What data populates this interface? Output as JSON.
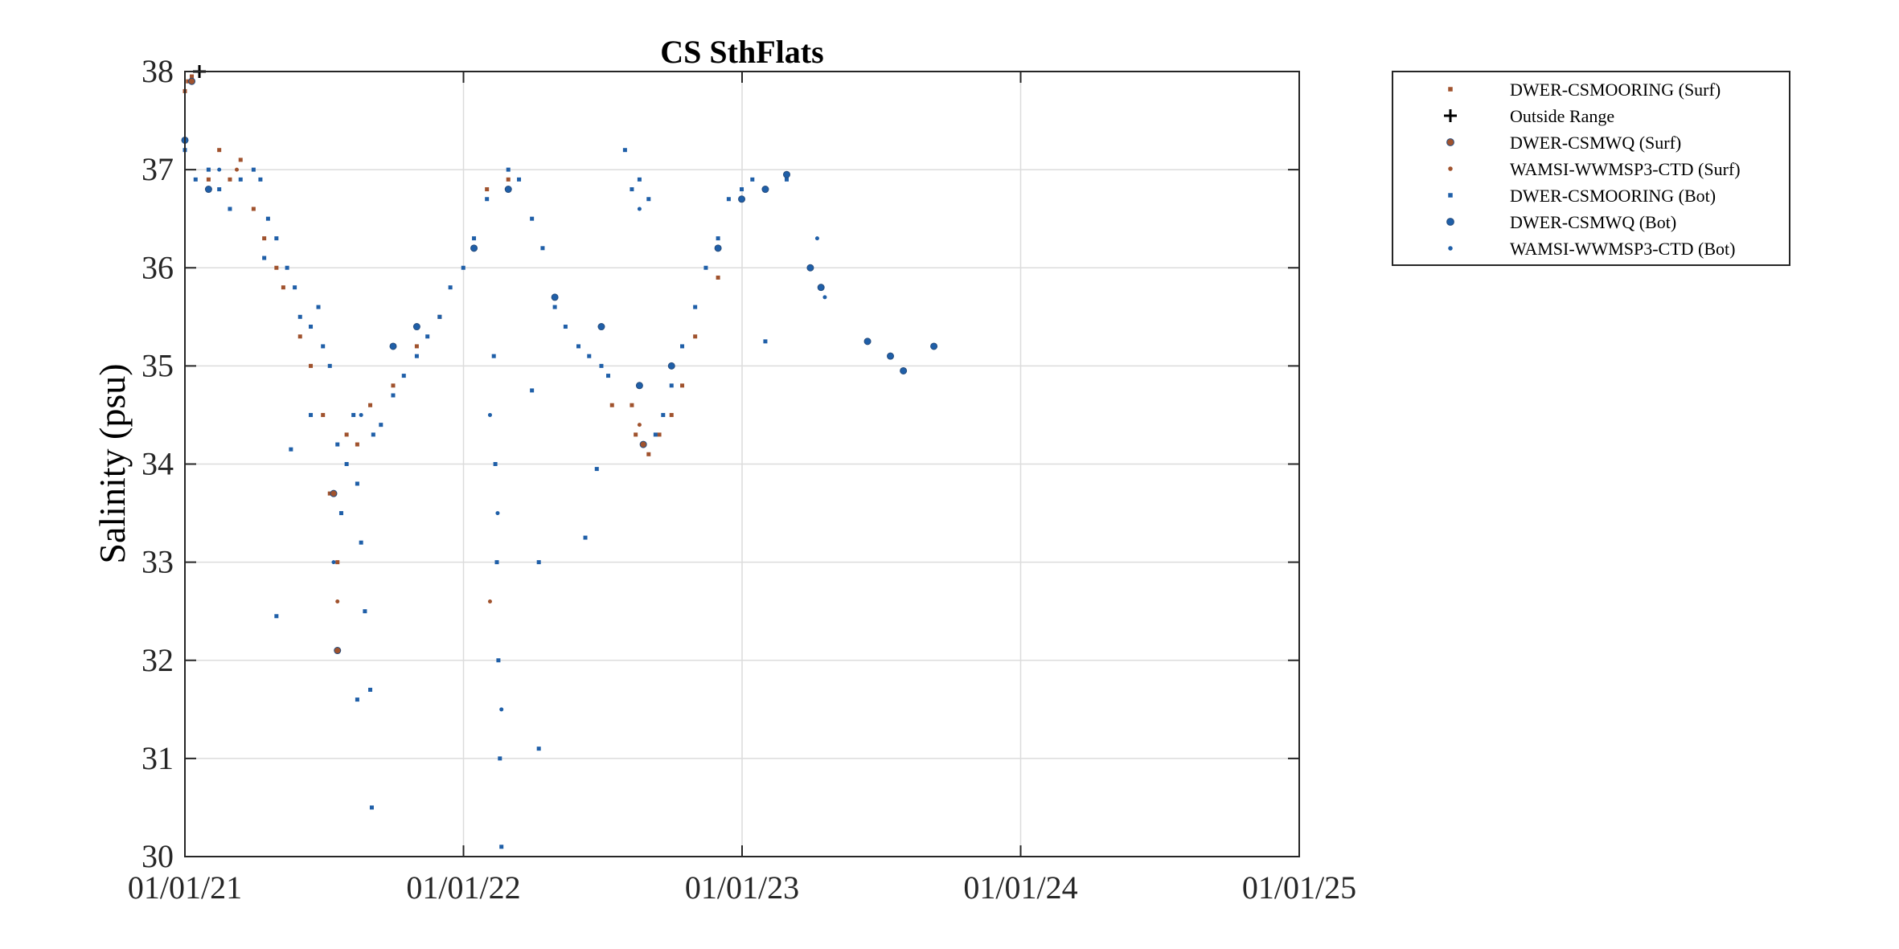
{
  "chart_data": {
    "type": "scatter",
    "title": "CS SthFlats",
    "xlabel": "",
    "ylabel": "Salinity (psu)",
    "xlim": [
      "2021-01-01",
      "2025-01-01"
    ],
    "ylim": [
      30,
      38
    ],
    "x_tick_labels": [
      "01/01/21",
      "01/01/22",
      "01/01/23",
      "01/01/24",
      "01/01/25"
    ],
    "y_tick_labels": [
      "30",
      "31",
      "32",
      "33",
      "34",
      "35",
      "36",
      "37",
      "38"
    ],
    "grid": true,
    "legend_position": "outside-top-right",
    "colors": {
      "surface": "#A0522D",
      "bottom": "#1F5FA8",
      "outside_range": "#000000"
    },
    "series": [
      {
        "name": "DWER-CSMOORING (Surf)",
        "marker": "square",
        "color": "#A0522D",
        "points": [
          [
            "2021-01-01",
            37.8
          ],
          [
            "2021-01-05",
            37.9
          ],
          [
            "2021-01-10",
            37.95
          ],
          [
            "2021-02-01",
            36.9
          ],
          [
            "2021-02-15",
            37.2
          ],
          [
            "2021-03-01",
            36.9
          ],
          [
            "2021-03-15",
            37.1
          ],
          [
            "2021-04-01",
            36.6
          ],
          [
            "2021-04-15",
            36.3
          ],
          [
            "2021-05-01",
            36.0
          ],
          [
            "2021-05-10",
            35.8
          ],
          [
            "2021-06-01",
            35.3
          ],
          [
            "2021-06-15",
            35.0
          ],
          [
            "2021-07-01",
            34.5
          ],
          [
            "2021-07-10",
            33.7
          ],
          [
            "2021-07-20",
            33.0
          ],
          [
            "2021-08-01",
            34.3
          ],
          [
            "2021-08-15",
            34.2
          ],
          [
            "2021-09-01",
            34.6
          ],
          [
            "2021-10-01",
            34.8
          ],
          [
            "2021-11-01",
            35.2
          ],
          [
            "2021-12-01",
            35.5
          ],
          [
            "2022-02-01",
            36.8
          ],
          [
            "2022-03-01",
            36.9
          ],
          [
            "2022-07-15",
            34.6
          ],
          [
            "2022-08-10",
            34.6
          ],
          [
            "2022-08-15",
            34.3
          ],
          [
            "2022-09-01",
            34.1
          ],
          [
            "2022-09-15",
            34.3
          ],
          [
            "2022-10-01",
            34.5
          ],
          [
            "2022-10-15",
            34.8
          ],
          [
            "2022-11-01",
            35.3
          ],
          [
            "2022-12-01",
            35.9
          ]
        ]
      },
      {
        "name": "Outside Range",
        "marker": "plus",
        "color": "#000000",
        "points": [
          [
            "2021-01-20",
            38.0
          ]
        ]
      },
      {
        "name": "DWER-CSMWQ (Surf)",
        "marker": "circle",
        "color": "#A0522D",
        "points": [
          [
            "2021-01-10",
            37.9
          ],
          [
            "2021-07-15",
            33.7
          ],
          [
            "2021-07-20",
            32.1
          ],
          [
            "2022-08-25",
            34.2
          ]
        ]
      },
      {
        "name": "WAMSI-WWMSP3-CTD (Surf)",
        "marker": "dot",
        "color": "#A0522D",
        "points": [
          [
            "2021-03-10",
            37.0
          ],
          [
            "2021-07-20",
            32.6
          ],
          [
            "2022-02-05",
            32.6
          ],
          [
            "2022-08-20",
            34.4
          ]
        ]
      },
      {
        "name": "DWER-CSMOORING (Bot)",
        "marker": "square",
        "color": "#1F5FA8",
        "points": [
          [
            "2021-01-01",
            37.2
          ],
          [
            "2021-01-15",
            36.9
          ],
          [
            "2021-02-01",
            37.0
          ],
          [
            "2021-02-15",
            36.8
          ],
          [
            "2021-03-01",
            36.6
          ],
          [
            "2021-03-15",
            36.9
          ],
          [
            "2021-04-01",
            37.0
          ],
          [
            "2021-04-10",
            36.9
          ],
          [
            "2021-04-20",
            36.5
          ],
          [
            "2021-05-01",
            36.3
          ],
          [
            "2021-05-15",
            36.0
          ],
          [
            "2021-05-25",
            35.8
          ],
          [
            "2021-06-01",
            35.5
          ],
          [
            "2021-06-15",
            35.4
          ],
          [
            "2021-06-25",
            35.6
          ],
          [
            "2021-07-01",
            35.2
          ],
          [
            "2021-07-10",
            35.0
          ],
          [
            "2021-07-20",
            34.2
          ],
          [
            "2021-07-25",
            33.5
          ],
          [
            "2021-08-01",
            34.0
          ],
          [
            "2021-08-10",
            34.5
          ],
          [
            "2021-08-15",
            33.8
          ],
          [
            "2021-08-20",
            33.2
          ],
          [
            "2021-08-25",
            32.5
          ],
          [
            "2021-09-01",
            31.7
          ],
          [
            "2021-09-03",
            30.5
          ],
          [
            "2021-09-05",
            34.3
          ],
          [
            "2021-09-15",
            34.4
          ],
          [
            "2021-10-01",
            34.7
          ],
          [
            "2021-10-15",
            34.9
          ],
          [
            "2021-11-01",
            35.1
          ],
          [
            "2021-11-15",
            35.3
          ],
          [
            "2021-12-01",
            35.5
          ],
          [
            "2021-12-15",
            35.8
          ],
          [
            "2022-01-01",
            36.0
          ],
          [
            "2022-01-15",
            36.3
          ],
          [
            "2022-02-01",
            36.7
          ],
          [
            "2022-02-10",
            35.1
          ],
          [
            "2022-02-12",
            34.0
          ],
          [
            "2022-02-14",
            33.0
          ],
          [
            "2022-02-16",
            32.0
          ],
          [
            "2022-02-18",
            31.0
          ],
          [
            "2022-02-20",
            30.1
          ],
          [
            "2022-03-01",
            37.0
          ],
          [
            "2022-03-15",
            36.9
          ],
          [
            "2022-04-01",
            36.5
          ],
          [
            "2022-04-15",
            36.2
          ],
          [
            "2022-05-01",
            35.6
          ],
          [
            "2022-05-15",
            35.4
          ],
          [
            "2022-06-01",
            35.2
          ],
          [
            "2022-06-15",
            35.1
          ],
          [
            "2022-07-01",
            35.0
          ],
          [
            "2022-07-10",
            34.9
          ],
          [
            "2022-08-01",
            37.2
          ],
          [
            "2022-08-10",
            36.8
          ],
          [
            "2022-08-20",
            36.9
          ],
          [
            "2022-09-01",
            36.7
          ],
          [
            "2022-09-10",
            34.3
          ],
          [
            "2022-09-20",
            34.5
          ],
          [
            "2022-10-01",
            34.8
          ],
          [
            "2022-10-15",
            35.2
          ],
          [
            "2022-11-01",
            35.6
          ],
          [
            "2022-11-15",
            36.0
          ],
          [
            "2022-12-01",
            36.3
          ],
          [
            "2022-12-15",
            36.7
          ],
          [
            "2023-01-01",
            36.8
          ],
          [
            "2023-01-15",
            36.9
          ],
          [
            "2023-02-01",
            35.25
          ],
          [
            "2023-03-01",
            36.9
          ],
          [
            "2021-04-15",
            36.1
          ],
          [
            "2021-06-15",
            34.5
          ],
          [
            "2021-05-20",
            34.15
          ],
          [
            "2021-05-01",
            32.45
          ],
          [
            "2022-04-01",
            34.75
          ],
          [
            "2022-04-10",
            33.0
          ],
          [
            "2022-04-10",
            31.1
          ],
          [
            "2022-06-10",
            33.25
          ],
          [
            "2022-06-25",
            33.95
          ],
          [
            "2021-08-15",
            31.6
          ]
        ]
      },
      {
        "name": "DWER-CSMWQ (Bot)",
        "marker": "circle",
        "color": "#1F5FA8",
        "points": [
          [
            "2021-01-01",
            37.3
          ],
          [
            "2021-02-01",
            36.8
          ],
          [
            "2021-10-01",
            35.2
          ],
          [
            "2021-11-01",
            35.4
          ],
          [
            "2022-01-15",
            36.2
          ],
          [
            "2022-03-01",
            36.8
          ],
          [
            "2022-05-01",
            35.7
          ],
          [
            "2022-07-01",
            35.4
          ],
          [
            "2022-08-20",
            34.8
          ],
          [
            "2022-10-01",
            35.0
          ],
          [
            "2022-12-01",
            36.2
          ],
          [
            "2023-01-01",
            36.7
          ],
          [
            "2023-02-01",
            36.8
          ],
          [
            "2023-03-01",
            36.95
          ],
          [
            "2023-04-01",
            36.0
          ],
          [
            "2023-04-15",
            35.8
          ],
          [
            "2023-06-15",
            35.25
          ],
          [
            "2023-07-15",
            35.1
          ],
          [
            "2023-08-01",
            34.95
          ],
          [
            "2023-09-10",
            35.2
          ]
        ]
      },
      {
        "name": "WAMSI-WWMSP3-CTD (Bot)",
        "marker": "dot",
        "color": "#1F5FA8",
        "points": [
          [
            "2021-02-15",
            37.0
          ],
          [
            "2021-07-15",
            33.0
          ],
          [
            "2021-08-20",
            34.5
          ],
          [
            "2022-02-05",
            34.5
          ],
          [
            "2022-02-15",
            33.5
          ],
          [
            "2022-02-20",
            31.5
          ],
          [
            "2022-08-20",
            36.6
          ],
          [
            "2023-04-10",
            36.3
          ],
          [
            "2023-04-20",
            35.7
          ]
        ]
      }
    ]
  }
}
